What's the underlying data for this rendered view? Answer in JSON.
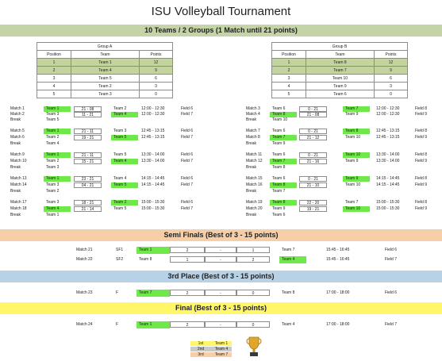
{
  "title": "ISU Volleyball Tournament",
  "group_band": "10 Teams / 2 Groups (1 Match until 21 points)",
  "groupA": {
    "title": "Group A",
    "headers": [
      "Position",
      "Team",
      "Points"
    ],
    "rows": [
      [
        "1",
        "Team 1",
        "12"
      ],
      [
        "2",
        "Team 4",
        "9"
      ],
      [
        "3",
        "Team 5",
        "6"
      ],
      [
        "4",
        "Team 2",
        "3"
      ],
      [
        "5",
        "Team 3",
        "0"
      ]
    ]
  },
  "groupB": {
    "title": "Group B",
    "headers": [
      "Position",
      "Team",
      "Points"
    ],
    "rows": [
      [
        "1",
        "Team 8",
        "12"
      ],
      [
        "2",
        "Team 7",
        "9"
      ],
      [
        "3",
        "Team 10",
        "6"
      ],
      [
        "4",
        "Team 9",
        "3"
      ],
      [
        "5",
        "Team 6",
        "0"
      ]
    ]
  },
  "left_matches": [
    {
      "label": "Match 1",
      "t1": "Team 1",
      "score": "21 - 08",
      "t2": "Team 2",
      "time": "12:00 - 12:30",
      "field": "Field 6",
      "win": 1
    },
    {
      "label": "Match 2",
      "t1": "Team 3",
      "score": "11 - 21",
      "t2": "Team 4",
      "time": "12:00 - 12:30",
      "field": "Field 7",
      "win": 2
    },
    {
      "label": "Break",
      "t1": "Team 5"
    },
    {
      "label": "Match 5",
      "t1": "Team 1",
      "score": "21 - 11",
      "t2": "Team 3",
      "time": "12:45 - 13:15",
      "field": "Field 6",
      "win": 1
    },
    {
      "label": "Match 6",
      "t1": "Team 2",
      "score": "19 - 21",
      "t2": "Team 5",
      "time": "12:45 - 13:15",
      "field": "Field 7",
      "win": 2
    },
    {
      "label": "Break",
      "t1": "Team 4"
    },
    {
      "label": "Match 9",
      "t1": "Team 1",
      "score": "21 - 11",
      "t2": "Team 5",
      "time": "13:30 - 14:00",
      "field": "Field 6",
      "win": 1
    },
    {
      "label": "Match 10",
      "t1": "Team 2",
      "score": "15 - 21",
      "t2": "Team 4",
      "time": "13:30 - 14:00",
      "field": "Field 7",
      "win": 2
    },
    {
      "label": "Break",
      "t1": "Team 3"
    },
    {
      "label": "Match 13",
      "t1": "Team 1",
      "score": "23 - 21",
      "t2": "Team 4",
      "time": "14:15 - 14:45",
      "field": "Field 6",
      "win": 1
    },
    {
      "label": "Match 14",
      "t1": "Team 3",
      "score": "04 - 21",
      "t2": "Team 5",
      "time": "14:15 - 14:45",
      "field": "Field 7",
      "win": 2
    },
    {
      "label": "Break",
      "t1": "Team 2"
    },
    {
      "label": "Match 17",
      "t1": "Team 3",
      "score": "18 - 21",
      "t2": "Team 2",
      "time": "15:00 - 15:30",
      "field": "Field 6",
      "win": 2
    },
    {
      "label": "Match 18",
      "t1": "Team 4",
      "score": "21 - 14",
      "t2": "Team 5",
      "time": "15:00 - 15:30",
      "field": "Field 7",
      "win": 1
    },
    {
      "label": "Break",
      "t1": "Team 1"
    }
  ],
  "right_matches": [
    {
      "label": "Match 3",
      "t1": "Team 6",
      "score": "0 - 21",
      "t2": "Team 7",
      "time": "12:00 - 12:30",
      "field": "Field 8",
      "win": 2
    },
    {
      "label": "Match 4",
      "t1": "Team 8",
      "score": "21 - 08",
      "t2": "Team 9",
      "time": "12:00 - 12:30",
      "field": "Field 9",
      "win": 1
    },
    {
      "label": "Break",
      "t1": "Team 10"
    },
    {
      "label": "Match 7",
      "t1": "Team 6",
      "score": "0 - 21",
      "t2": "Team 8",
      "time": "12:45 - 13:15",
      "field": "Field 8",
      "win": 2
    },
    {
      "label": "Match 8",
      "t1": "Team 7",
      "score": "21 - 12",
      "t2": "Team 10",
      "time": "12:45 - 13:15",
      "field": "Field 9",
      "win": 1
    },
    {
      "label": "Break",
      "t1": "Team 9"
    },
    {
      "label": "Match 11",
      "t1": "Team 6",
      "score": "0 - 21",
      "t2": "Team 10",
      "time": "13:30 - 14:00",
      "field": "Field 8",
      "win": 2
    },
    {
      "label": "Match 12",
      "t1": "Team 7",
      "score": "21 - 16",
      "t2": "Team 9",
      "time": "13:30 - 14:00",
      "field": "Field 9",
      "win": 1
    },
    {
      "label": "Break",
      "t1": "Team 8"
    },
    {
      "label": "Match 15",
      "t1": "Team 6",
      "score": "0 - 21",
      "t2": "Team 9",
      "time": "14:15 - 14:45",
      "field": "Field 8",
      "win": 2
    },
    {
      "label": "Match 16",
      "t1": "Team 8",
      "score": "21 - 10",
      "t2": "Team 10",
      "time": "14:15 - 14:45",
      "field": "Field 9",
      "win": 1
    },
    {
      "label": "Break",
      "t1": "Team 7"
    },
    {
      "label": "Match 19",
      "t1": "Team 8",
      "score": "22 - 20",
      "t2": "Team 7",
      "time": "15:00 - 15:30",
      "field": "Field 8",
      "win": 1
    },
    {
      "label": "Match 20",
      "t1": "Team 9",
      "score": "19 - 21",
      "t2": "Team 10",
      "time": "15:00 - 15:30",
      "field": "Field 9",
      "win": 2
    },
    {
      "label": "Break",
      "t1": "Team 6"
    }
  ],
  "semis_band": "Semi Finals (Best of 3 - 15 points)",
  "third_band": "3rd Place (Best of 3 - 15 points)",
  "final_band": "Final (Best of 3 - 15 points)",
  "playoffs": [
    {
      "label": "Match 21",
      "round": "SF1",
      "t1": "Team 1",
      "s1": "2",
      "dash": "-",
      "s2": "1",
      "t2": "Team 7",
      "time": "15:45 - 16:45",
      "field": "Field 6",
      "win": 1
    },
    {
      "label": "Match 22",
      "round": "SF2",
      "t1": "Team 8",
      "s1": "1",
      "dash": "-",
      "s2": "2",
      "t2": "Team 4",
      "time": "15:45 - 16:45",
      "field": "Field 7",
      "win": 2
    },
    {
      "label": "Match 23",
      "round": "F",
      "t1": "Team 7",
      "s1": "2",
      "dash": "-",
      "s2": "0",
      "t2": "Team 8",
      "time": "17:00 - 18:00",
      "field": "Field 6",
      "win": 1
    },
    {
      "label": "Match 24",
      "round": "F",
      "t1": "Team 1",
      "s1": "2",
      "dash": "-",
      "s2": "0",
      "t2": "Team 4",
      "time": "17:00 - 18:00",
      "field": "Field 7",
      "win": 1
    }
  ],
  "podium": [
    {
      "place": "1st",
      "team": "Team 1",
      "color": "#fff66a"
    },
    {
      "place": "2nd",
      "team": "Team 4",
      "color": "#c9c9c9"
    },
    {
      "place": "3rd",
      "team": "Team 7",
      "color": "#f6cfa8"
    }
  ],
  "colors": {
    "winner": "#6fe84a",
    "highlight_row": "#c3d49f"
  }
}
